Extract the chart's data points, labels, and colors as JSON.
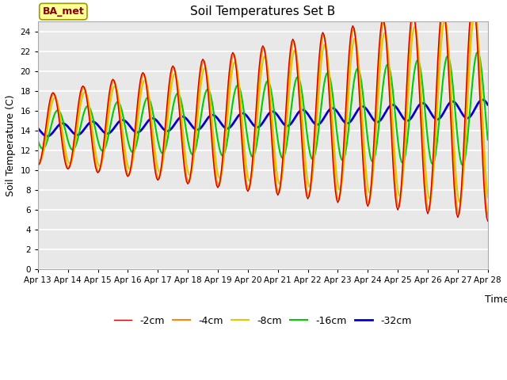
{
  "title": "Soil Temperatures Set B",
  "xlabel": "Time",
  "ylabel": "Soil Temperature (C)",
  "ylim": [
    0,
    25
  ],
  "yticks": [
    0,
    2,
    4,
    6,
    8,
    10,
    12,
    14,
    16,
    18,
    20,
    22,
    24
  ],
  "plot_bg_color": "#e8e8e8",
  "fig_bg_color": "#ffffff",
  "annotation_text": "BA_met",
  "annotation_color": "#8b0000",
  "annotation_bg": "#ffff99",
  "annotation_edge": "#999900",
  "x_labels": [
    "Apr 13",
    "Apr 14",
    "Apr 15",
    "Apr 16",
    "Apr 17",
    "Apr 18",
    "Apr 19",
    "Apr 20",
    "Apr 21",
    "Apr 22",
    "Apr 23",
    "Apr 24",
    "Apr 25",
    "Apr 26",
    "Apr 27",
    "Apr 28"
  ],
  "legend_labels": [
    "-2cm",
    "-4cm",
    "-8cm",
    "-16cm",
    "-32cm"
  ],
  "line_colors": [
    "#cc0000",
    "#ff8800",
    "#ddcc00",
    "#00cc00",
    "#0000cc"
  ],
  "line_widths": [
    1.0,
    1.5,
    1.5,
    1.5,
    2.0
  ]
}
